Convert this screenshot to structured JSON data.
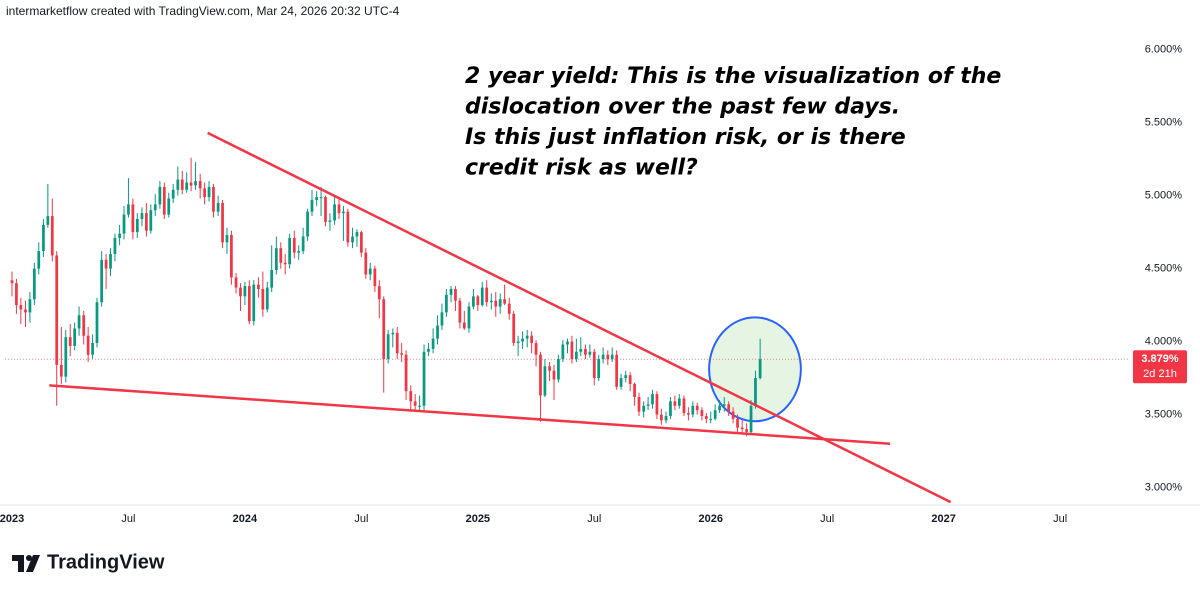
{
  "header": "intermarketflow created with TradingView.com, Mar 24, 2026 20:32 UTC-4",
  "brand": "TradingView",
  "chart_data": {
    "type": "candlestick",
    "annotation": [
      "2 year yield: This is the visualization of the",
      "dislocation over the past few days.",
      "Is this just inflation risk, or is there",
      "credit risk as well?"
    ],
    "up_color": "#089981",
    "down_color": "#f23645",
    "xlim": [
      2022.97,
      2027.8
    ],
    "ylim": [
      2.88,
      6.19
    ],
    "xticks": [
      {
        "value": 2023,
        "label": "2023"
      },
      {
        "value": 2023.5,
        "label": "Jul"
      },
      {
        "value": 2024,
        "label": "2024"
      },
      {
        "value": 2024.5,
        "label": "Jul"
      },
      {
        "value": 2025,
        "label": "2025"
      },
      {
        "value": 2025.5,
        "label": "Jul"
      },
      {
        "value": 2026,
        "label": "2026"
      },
      {
        "value": 2026.5,
        "label": "Jul"
      },
      {
        "value": 2027,
        "label": "2027"
      },
      {
        "value": 2027.5,
        "label": "Jul"
      }
    ],
    "yticks": [
      {
        "value": 3,
        "label": "3.000%"
      },
      {
        "value": 3.5,
        "label": "3.500%"
      },
      {
        "value": 4,
        "label": "4.000%"
      },
      {
        "value": 4.5,
        "label": "4.500%"
      },
      {
        "value": 5,
        "label": "5.000%"
      },
      {
        "value": 5.5,
        "label": "5.500%"
      },
      {
        "value": 6,
        "label": "6.000%"
      }
    ],
    "last_price": {
      "value": 3.879,
      "label": "3.879%"
    },
    "countdown": "2d 21h",
    "price_line_color": "#f23645",
    "trendlines": [
      {
        "x": [
          2023.16,
          2026.77
        ],
        "y": [
          3.7,
          3.3
        ],
        "color": "#f23645"
      },
      {
        "x": [
          2023.84,
          2027.03
        ],
        "y": [
          5.43,
          2.9
        ],
        "color": "#f23645"
      }
    ],
    "ellipse": {
      "x": 2026.19,
      "y": 3.81,
      "rx": 0.197,
      "ry": 0.356,
      "color": "#2962ff",
      "fill": "#c8e6c0"
    },
    "x": [
      2023,
      2023.019,
      2023.038,
      2023.058,
      2023.077,
      2023.096,
      2023.115,
      2023.135,
      2023.154,
      2023.173,
      2023.192,
      2023.212,
      2023.231,
      2023.25,
      2023.269,
      2023.288,
      2023.308,
      2023.327,
      2023.346,
      2023.365,
      2023.385,
      2023.404,
      2023.423,
      2023.442,
      2023.462,
      2023.481,
      2023.5,
      2023.519,
      2023.538,
      2023.558,
      2023.577,
      2023.596,
      2023.615,
      2023.635,
      2023.654,
      2023.673,
      2023.692,
      2023.712,
      2023.731,
      2023.75,
      2023.769,
      2023.788,
      2023.808,
      2023.827,
      2023.846,
      2023.865,
      2023.885,
      2023.904,
      2023.923,
      2023.942,
      2023.962,
      2023.981,
      2024,
      2024.019,
      2024.038,
      2024.058,
      2024.077,
      2024.096,
      2024.115,
      2024.135,
      2024.154,
      2024.173,
      2024.192,
      2024.212,
      2024.231,
      2024.25,
      2024.269,
      2024.288,
      2024.308,
      2024.327,
      2024.346,
      2024.365,
      2024.385,
      2024.404,
      2024.423,
      2024.442,
      2024.462,
      2024.481,
      2024.5,
      2024.519,
      2024.538,
      2024.558,
      2024.577,
      2024.596,
      2024.615,
      2024.635,
      2024.654,
      2024.673,
      2024.692,
      2024.712,
      2024.731,
      2024.75,
      2024.769,
      2024.788,
      2024.808,
      2024.827,
      2024.846,
      2024.865,
      2024.885,
      2024.904,
      2024.923,
      2024.942,
      2024.962,
      2024.981,
      2025,
      2025.019,
      2025.038,
      2025.058,
      2025.077,
      2025.096,
      2025.115,
      2025.135,
      2025.154,
      2025.173,
      2025.192,
      2025.212,
      2025.231,
      2025.25,
      2025.269,
      2025.288,
      2025.308,
      2025.327,
      2025.346,
      2025.365,
      2025.385,
      2025.404,
      2025.423,
      2025.442,
      2025.462,
      2025.481,
      2025.5,
      2025.519,
      2025.538,
      2025.558,
      2025.577,
      2025.596,
      2025.615,
      2025.635,
      2025.654,
      2025.673,
      2025.692,
      2025.712,
      2025.731,
      2025.75,
      2025.769,
      2025.788,
      2025.808,
      2025.827,
      2025.846,
      2025.865,
      2025.885,
      2025.904,
      2025.923,
      2025.942,
      2025.962,
      2025.981,
      2026,
      2026.019,
      2026.038,
      2026.058,
      2026.077,
      2026.096,
      2026.115,
      2026.135,
      2026.154,
      2026.173,
      2026.192,
      2026.212
    ],
    "ohlc": [
      [
        4.42,
        4.48,
        4.31,
        4.4
      ],
      [
        4.4,
        4.43,
        4.19,
        4.25
      ],
      [
        4.25,
        4.3,
        4.12,
        4.22
      ],
      [
        4.22,
        4.28,
        4.1,
        4.2
      ],
      [
        4.2,
        4.34,
        4.13,
        4.29
      ],
      [
        4.29,
        4.54,
        4.25,
        4.5
      ],
      [
        4.5,
        4.68,
        4.46,
        4.62
      ],
      [
        4.62,
        4.84,
        4.58,
        4.8
      ],
      [
        4.8,
        5.08,
        4.78,
        4.86
      ],
      [
        4.86,
        4.98,
        4.55,
        4.59
      ],
      [
        4.59,
        4.62,
        3.56,
        3.84
      ],
      [
        3.84,
        4.1,
        3.71,
        3.76
      ],
      [
        3.76,
        4.08,
        3.72,
        4.03
      ],
      [
        4.03,
        4.12,
        3.9,
        3.97
      ],
      [
        3.97,
        4.13,
        3.94,
        4.09
      ],
      [
        4.09,
        4.24,
        4.04,
        4.18
      ],
      [
        4.18,
        4.21,
        3.98,
        4.04
      ],
      [
        4.04,
        4.1,
        3.86,
        3.91
      ],
      [
        3.91,
        4.05,
        3.88,
        3.99
      ],
      [
        3.99,
        4.3,
        3.96,
        4.27
      ],
      [
        4.27,
        4.62,
        4.24,
        4.56
      ],
      [
        4.56,
        4.6,
        4.36,
        4.5
      ],
      [
        4.5,
        4.64,
        4.45,
        4.6
      ],
      [
        4.6,
        4.74,
        4.55,
        4.71
      ],
      [
        4.71,
        4.8,
        4.66,
        4.74
      ],
      [
        4.74,
        4.93,
        4.7,
        4.87
      ],
      [
        4.87,
        5.12,
        4.85,
        4.94
      ],
      [
        4.94,
        4.98,
        4.7,
        4.75
      ],
      [
        4.75,
        4.88,
        4.71,
        4.84
      ],
      [
        4.84,
        4.92,
        4.79,
        4.88
      ],
      [
        4.88,
        4.95,
        4.72,
        4.76
      ],
      [
        4.76,
        4.94,
        4.74,
        4.9
      ],
      [
        4.9,
        5.01,
        4.86,
        4.94
      ],
      [
        4.94,
        5.1,
        4.91,
        5.06
      ],
      [
        5.06,
        5.09,
        4.84,
        4.87
      ],
      [
        4.87,
        5.02,
        4.85,
        4.98
      ],
      [
        4.98,
        5.08,
        4.95,
        5.04
      ],
      [
        5.04,
        5.2,
        5.0,
        5.11
      ],
      [
        5.11,
        5.17,
        5.01,
        5.04
      ],
      [
        5.04,
        5.16,
        5.02,
        5.09
      ],
      [
        5.09,
        5.26,
        5.03,
        5.07
      ],
      [
        5.07,
        5.23,
        5.04,
        5.1
      ],
      [
        5.1,
        5.15,
        4.98,
        5.05
      ],
      [
        5.05,
        5.09,
        4.94,
        4.99
      ],
      [
        4.99,
        5.1,
        4.96,
        5.06
      ],
      [
        5.06,
        5.08,
        4.85,
        4.89
      ],
      [
        4.89,
        5.0,
        4.86,
        4.95
      ],
      [
        4.95,
        4.97,
        4.64,
        4.68
      ],
      [
        4.68,
        4.78,
        4.6,
        4.73
      ],
      [
        4.73,
        4.76,
        4.39,
        4.44
      ],
      [
        4.44,
        4.47,
        4.33,
        4.37
      ],
      [
        4.37,
        4.4,
        4.21,
        4.31
      ],
      [
        4.31,
        4.41,
        4.25,
        4.38
      ],
      [
        4.38,
        4.42,
        4.12,
        4.14
      ],
      [
        4.14,
        4.42,
        4.11,
        4.39
      ],
      [
        4.39,
        4.44,
        4.3,
        4.36
      ],
      [
        4.36,
        4.48,
        4.17,
        4.22
      ],
      [
        4.22,
        4.41,
        4.2,
        4.37
      ],
      [
        4.37,
        4.66,
        4.34,
        4.49
      ],
      [
        4.49,
        4.72,
        4.46,
        4.64
      ],
      [
        4.64,
        4.68,
        4.5,
        4.54
      ],
      [
        4.54,
        4.6,
        4.46,
        4.53
      ],
      [
        4.53,
        4.74,
        4.5,
        4.71
      ],
      [
        4.71,
        4.76,
        4.57,
        4.61
      ],
      [
        4.61,
        4.66,
        4.56,
        4.62
      ],
      [
        4.62,
        4.78,
        4.6,
        4.72
      ],
      [
        4.72,
        4.91,
        4.69,
        4.89
      ],
      [
        4.89,
        5.04,
        4.86,
        4.97
      ],
      [
        4.97,
        5.03,
        4.93,
        4.99
      ],
      [
        4.99,
        5.06,
        4.86,
        4.99
      ],
      [
        4.99,
        5.0,
        4.79,
        4.82
      ],
      [
        4.82,
        4.88,
        4.76,
        4.83
      ],
      [
        4.83,
        4.99,
        4.8,
        4.94
      ],
      [
        4.94,
        4.98,
        4.84,
        4.88
      ],
      [
        4.88,
        4.93,
        4.69,
        4.89
      ],
      [
        4.89,
        4.91,
        4.65,
        4.68
      ],
      [
        4.68,
        4.78,
        4.64,
        4.72
      ],
      [
        4.72,
        4.77,
        4.65,
        4.75
      ],
      [
        4.75,
        4.76,
        4.58,
        4.61
      ],
      [
        4.61,
        4.64,
        4.43,
        4.46
      ],
      [
        4.46,
        4.54,
        4.42,
        4.5
      ],
      [
        4.5,
        4.52,
        4.34,
        4.38
      ],
      [
        4.38,
        4.42,
        4.16,
        4.29
      ],
      [
        4.29,
        4.31,
        3.65,
        3.88
      ],
      [
        3.88,
        4.08,
        3.85,
        4.05
      ],
      [
        4.05,
        4.09,
        3.96,
        4.06
      ],
      [
        4.06,
        4.1,
        3.88,
        3.92
      ],
      [
        3.92,
        3.99,
        3.86,
        3.91
      ],
      [
        3.91,
        3.94,
        3.6,
        3.66
      ],
      [
        3.66,
        3.7,
        3.53,
        3.59
      ],
      [
        3.59,
        3.64,
        3.53,
        3.56
      ],
      [
        3.56,
        3.63,
        3.52,
        3.56
      ],
      [
        3.56,
        3.98,
        3.53,
        3.93
      ],
      [
        3.93,
        3.99,
        3.9,
        3.95
      ],
      [
        3.95,
        4.09,
        3.92,
        4.02
      ],
      [
        4.02,
        4.18,
        3.98,
        4.11
      ],
      [
        4.11,
        4.26,
        4.08,
        4.2
      ],
      [
        4.2,
        4.36,
        4.17,
        4.32
      ],
      [
        4.32,
        4.38,
        4.27,
        4.36
      ],
      [
        4.36,
        4.38,
        4.21,
        4.28
      ],
      [
        4.28,
        4.3,
        4.09,
        4.13
      ],
      [
        4.13,
        4.21,
        4.08,
        4.09
      ],
      [
        4.09,
        4.27,
        4.06,
        4.24
      ],
      [
        4.24,
        4.36,
        4.22,
        4.31
      ],
      [
        4.31,
        4.32,
        4.21,
        4.25
      ],
      [
        4.25,
        4.41,
        4.24,
        4.37
      ],
      [
        4.37,
        4.42,
        4.24,
        4.27
      ],
      [
        4.27,
        4.33,
        4.22,
        4.28
      ],
      [
        4.28,
        4.34,
        4.17,
        4.24
      ],
      [
        4.24,
        4.33,
        4.19,
        4.29
      ],
      [
        4.29,
        4.39,
        4.25,
        4.26
      ],
      [
        4.26,
        4.3,
        4.15,
        4.19
      ],
      [
        4.19,
        4.21,
        3.97,
        3.99
      ],
      [
        3.99,
        4.04,
        3.9,
        4.0
      ],
      [
        4.0,
        4.07,
        3.95,
        4.02
      ],
      [
        4.02,
        4.08,
        3.96,
        4.04
      ],
      [
        4.04,
        4.07,
        3.92,
        3.99
      ],
      [
        3.99,
        4.01,
        3.83,
        3.91
      ],
      [
        3.91,
        3.93,
        3.45,
        3.63
      ],
      [
        3.63,
        3.88,
        3.62,
        3.83
      ],
      [
        3.83,
        3.86,
        3.73,
        3.8
      ],
      [
        3.8,
        3.84,
        3.6,
        3.74
      ],
      [
        3.74,
        3.91,
        3.72,
        3.88
      ],
      [
        3.88,
        4.01,
        3.86,
        3.98
      ],
      [
        3.98,
        4.02,
        3.92,
        4.0
      ],
      [
        4.0,
        4.04,
        3.85,
        3.88
      ],
      [
        3.88,
        4.02,
        3.86,
        3.93
      ],
      [
        3.93,
        4.03,
        3.9,
        3.95
      ],
      [
        3.95,
        3.98,
        3.88,
        3.91
      ],
      [
        3.91,
        3.98,
        3.89,
        3.93
      ],
      [
        3.93,
        3.95,
        3.7,
        3.75
      ],
      [
        3.75,
        3.91,
        3.73,
        3.88
      ],
      [
        3.88,
        3.96,
        3.85,
        3.91
      ],
      [
        3.91,
        3.94,
        3.84,
        3.88
      ],
      [
        3.88,
        3.96,
        3.86,
        3.91
      ],
      [
        3.91,
        3.94,
        3.67,
        3.69
      ],
      [
        3.69,
        3.78,
        3.67,
        3.75
      ],
      [
        3.75,
        3.8,
        3.72,
        3.77
      ],
      [
        3.77,
        3.79,
        3.66,
        3.71
      ],
      [
        3.71,
        3.72,
        3.56,
        3.62
      ],
      [
        3.62,
        3.65,
        3.49,
        3.52
      ],
      [
        3.52,
        3.59,
        3.48,
        3.56
      ],
      [
        3.56,
        3.62,
        3.53,
        3.57
      ],
      [
        3.57,
        3.67,
        3.54,
        3.64
      ],
      [
        3.64,
        3.66,
        3.47,
        3.5
      ],
      [
        3.5,
        3.54,
        3.43,
        3.46
      ],
      [
        3.46,
        3.52,
        3.44,
        3.49
      ],
      [
        3.49,
        3.62,
        3.47,
        3.59
      ],
      [
        3.59,
        3.63,
        3.53,
        3.56
      ],
      [
        3.56,
        3.64,
        3.54,
        3.61
      ],
      [
        3.61,
        3.63,
        3.49,
        3.51
      ],
      [
        3.51,
        3.55,
        3.46,
        3.5
      ],
      [
        3.5,
        3.59,
        3.48,
        3.56
      ],
      [
        3.56,
        3.58,
        3.5,
        3.53
      ],
      [
        3.53,
        3.55,
        3.46,
        3.49
      ],
      [
        3.49,
        3.51,
        3.44,
        3.47
      ],
      [
        3.47,
        3.52,
        3.44,
        3.47
      ],
      [
        3.47,
        3.57,
        3.46,
        3.53
      ],
      [
        3.53,
        3.6,
        3.51,
        3.56
      ],
      [
        3.56,
        3.62,
        3.52,
        3.57
      ],
      [
        3.57,
        3.59,
        3.49,
        3.52
      ],
      [
        3.52,
        3.55,
        3.44,
        3.47
      ],
      [
        3.47,
        3.5,
        3.38,
        3.41
      ],
      [
        3.41,
        3.46,
        3.37,
        3.4
      ],
      [
        3.4,
        3.44,
        3.35,
        3.38
      ],
      [
        3.38,
        3.6,
        3.37,
        3.56
      ],
      [
        3.56,
        3.8,
        3.54,
        3.75
      ],
      [
        3.75,
        4.02,
        3.74,
        3.879
      ]
    ]
  }
}
